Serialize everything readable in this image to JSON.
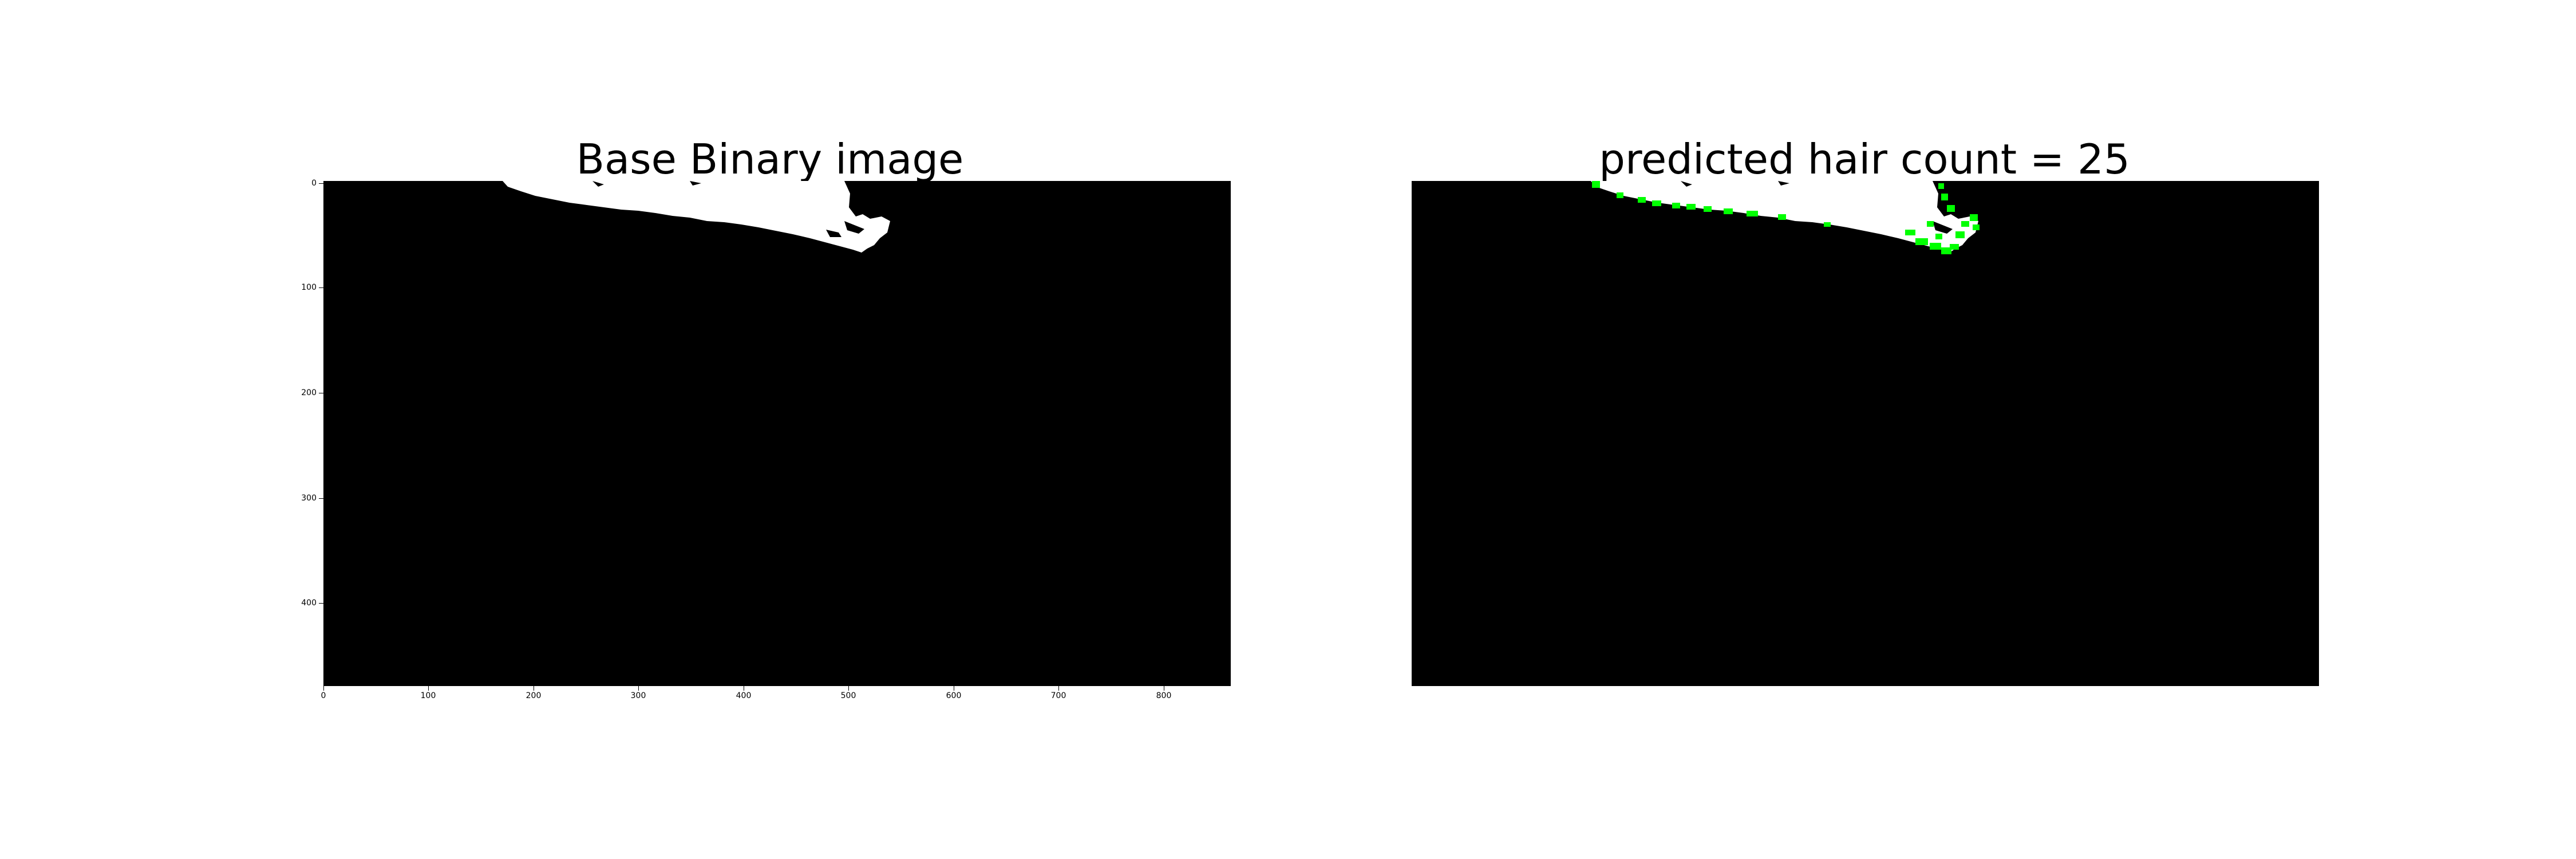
{
  "figure": {
    "left_panel": {
      "title": "Base Binary image",
      "x_ticks": [
        "0",
        "100",
        "200",
        "300",
        "400",
        "500",
        "600",
        "700",
        "800"
      ],
      "y_ticks": [
        "0",
        "100",
        "200",
        "300",
        "400"
      ]
    },
    "right_panel": {
      "title": "predicted hair count = 25",
      "hair_count": 25
    },
    "colors": {
      "background": "#000000",
      "foreground": "#ffffff",
      "detection_marker": "#00ff00"
    }
  }
}
